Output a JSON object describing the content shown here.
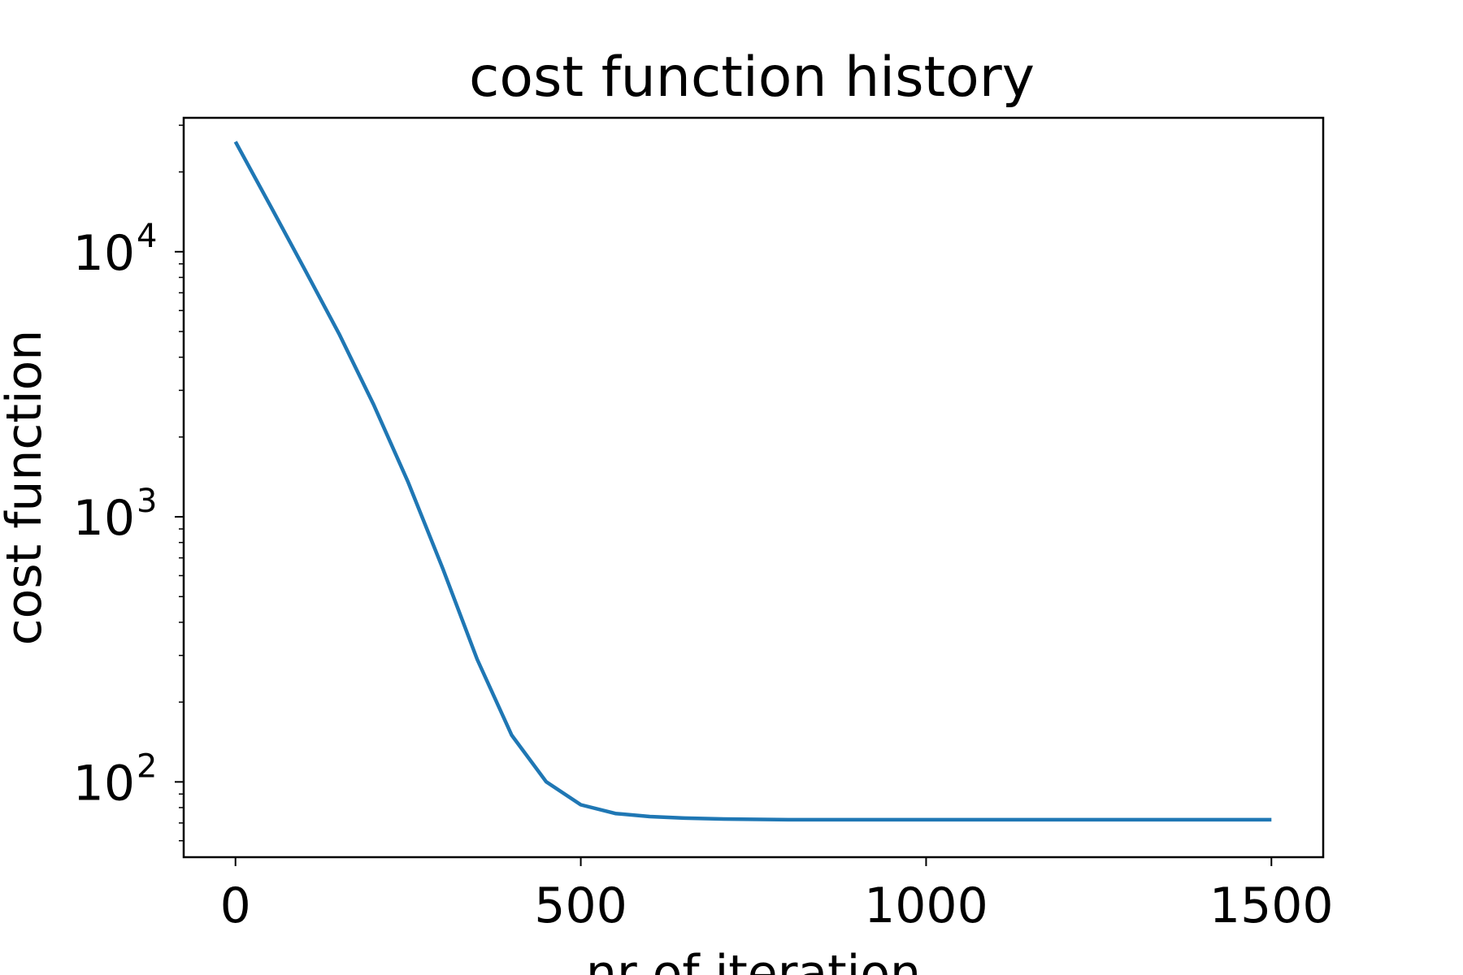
{
  "chart_data": {
    "type": "line",
    "title": "cost function history",
    "xlabel": "nr of iteration",
    "ylabel": "cost function",
    "x_scale": "linear",
    "y_scale": "log",
    "xlim": [
      -75,
      1575
    ],
    "ylim": [
      52,
      32000
    ],
    "x_ticks": [
      0,
      500,
      1000,
      1500
    ],
    "x_tick_labels": [
      "0",
      "500",
      "1000",
      "1500"
    ],
    "y_ticks": [
      100,
      1000,
      10000
    ],
    "y_tick_labels": [
      {
        "base": "10",
        "exp": "2"
      },
      {
        "base": "10",
        "exp": "3"
      },
      {
        "base": "10",
        "exp": "4"
      }
    ],
    "grid": false,
    "legend": false,
    "series": [
      {
        "color": "#1f77b4",
        "x": [
          0,
          50,
          100,
          150,
          200,
          250,
          300,
          350,
          400,
          450,
          500,
          550,
          600,
          650,
          700,
          800,
          900,
          1000,
          1100,
          1200,
          1300,
          1400,
          1500
        ],
        "y": [
          26000,
          15000,
          8600,
          4900,
          2650,
          1350,
          640,
          290,
          150,
          100,
          82,
          76,
          74,
          73,
          72.5,
          72,
          72,
          72,
          72,
          72,
          72,
          72,
          72
        ]
      }
    ]
  }
}
